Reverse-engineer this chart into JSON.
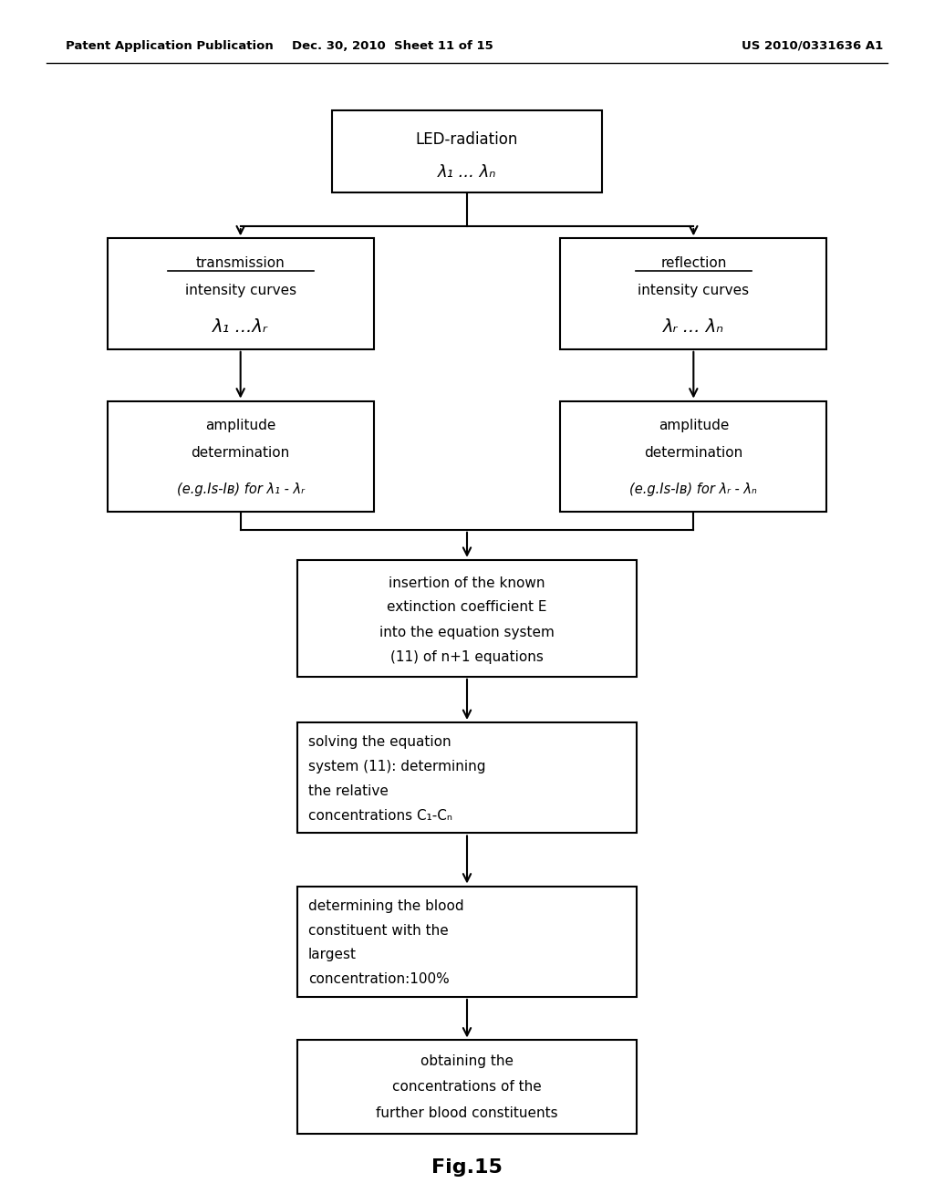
{
  "background_color": "#ffffff",
  "header_left": "Patent Application Publication",
  "header_mid": "Dec. 30, 2010  Sheet 11 of 15",
  "header_right": "US 2010/0331636 A1",
  "footer": "Fig.15"
}
